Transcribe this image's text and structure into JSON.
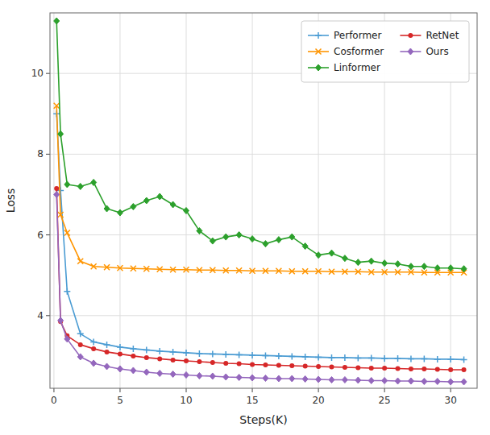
{
  "chart_data": {
    "type": "line",
    "xlabel": "Steps(K)",
    "ylabel": "Loss",
    "xlim": [
      -0.3,
      32
    ],
    "ylim": [
      2.2,
      11.5
    ],
    "xticks": [
      0,
      5,
      10,
      15,
      20,
      25,
      30
    ],
    "yticks": [
      4,
      6,
      8,
      10
    ],
    "grid": true,
    "legend": "upper-right",
    "x": [
      0.2,
      0.5,
      1,
      2,
      3,
      4,
      5,
      6,
      7,
      8,
      9,
      10,
      11,
      12,
      13,
      14,
      15,
      16,
      17,
      18,
      19,
      20,
      21,
      22,
      23,
      24,
      25,
      26,
      27,
      28,
      29,
      30,
      31
    ],
    "series": [
      {
        "name": "Performer",
        "color": "#4b9cd3",
        "marker": "plus",
        "values": [
          9.0,
          7.1,
          4.6,
          3.55,
          3.35,
          3.28,
          3.22,
          3.18,
          3.15,
          3.12,
          3.1,
          3.08,
          3.06,
          3.05,
          3.04,
          3.03,
          3.02,
          3.01,
          3.0,
          2.99,
          2.98,
          2.97,
          2.96,
          2.96,
          2.95,
          2.95,
          2.94,
          2.94,
          2.93,
          2.93,
          2.92,
          2.92,
          2.91
        ]
      },
      {
        "name": "Cosformer",
        "color": "#ff9500",
        "marker": "x",
        "values": [
          9.2,
          6.5,
          6.05,
          5.35,
          5.22,
          5.2,
          5.18,
          5.17,
          5.16,
          5.15,
          5.14,
          5.14,
          5.13,
          5.13,
          5.12,
          5.12,
          5.11,
          5.11,
          5.11,
          5.1,
          5.1,
          5.1,
          5.09,
          5.09,
          5.09,
          5.08,
          5.08,
          5.08,
          5.08,
          5.07,
          5.07,
          5.07,
          5.07
        ]
      },
      {
        "name": "Linformer",
        "color": "#2ca02c",
        "marker": "diamond",
        "values": [
          11.3,
          8.5,
          7.25,
          7.2,
          7.3,
          6.65,
          6.55,
          6.7,
          6.85,
          6.95,
          6.75,
          6.6,
          6.1,
          5.85,
          5.95,
          6.0,
          5.9,
          5.78,
          5.88,
          5.95,
          5.72,
          5.5,
          5.55,
          5.42,
          5.32,
          5.35,
          5.3,
          5.28,
          5.22,
          5.22,
          5.18,
          5.18,
          5.16
        ]
      },
      {
        "name": "RetNet",
        "color": "#d62728",
        "marker": "circle",
        "values": [
          7.15,
          3.85,
          3.5,
          3.28,
          3.18,
          3.1,
          3.05,
          3.0,
          2.96,
          2.93,
          2.9,
          2.88,
          2.86,
          2.84,
          2.82,
          2.81,
          2.79,
          2.78,
          2.77,
          2.76,
          2.75,
          2.74,
          2.73,
          2.72,
          2.71,
          2.7,
          2.7,
          2.69,
          2.68,
          2.68,
          2.67,
          2.66,
          2.66
        ]
      },
      {
        "name": "Ours",
        "color": "#9467bd",
        "marker": "diamond",
        "values": [
          7.0,
          3.88,
          3.42,
          2.98,
          2.82,
          2.74,
          2.68,
          2.64,
          2.6,
          2.57,
          2.55,
          2.53,
          2.51,
          2.5,
          2.48,
          2.47,
          2.46,
          2.45,
          2.44,
          2.44,
          2.43,
          2.42,
          2.41,
          2.41,
          2.4,
          2.39,
          2.39,
          2.38,
          2.38,
          2.37,
          2.37,
          2.36,
          2.36
        ]
      }
    ]
  }
}
